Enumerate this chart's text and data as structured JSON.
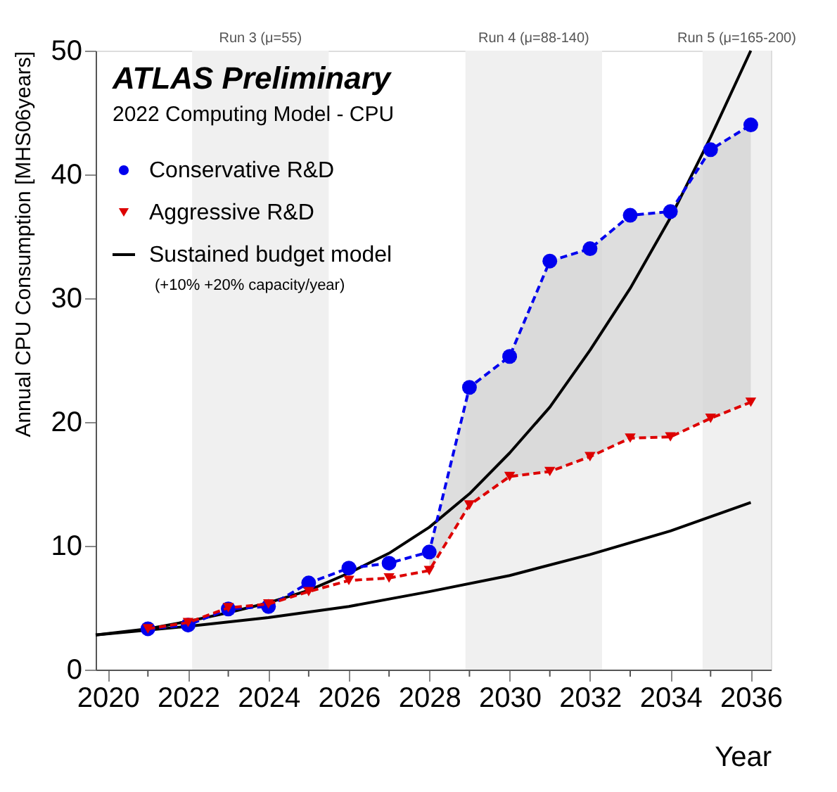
{
  "chart_data": {
    "type": "line",
    "title": "ATLAS Preliminary",
    "subtitle": "2022 Computing Model - CPU",
    "xlabel": "Year",
    "ylabel": "Annual CPU Consumption  [MHS06years]",
    "xlim": [
      2019.7,
      2036.5
    ],
    "ylim": [
      0,
      50
    ],
    "xticks": [
      2020,
      {
        "value": 2021,
        "label": null
      },
      2022,
      {
        "value": 2023,
        "label": null
      },
      2024,
      {
        "value": 2025,
        "label": null
      },
      2026,
      {
        "value": 2027,
        "label": null
      },
      2028,
      {
        "value": 2029,
        "label": null
      },
      2030,
      {
        "value": 2031,
        "label": null
      },
      2032,
      {
        "value": 2033,
        "label": null
      },
      2034,
      {
        "value": 2035,
        "label": null
      },
      2036
    ],
    "yticks": [
      0,
      10,
      20,
      30,
      40,
      50
    ],
    "grid": false,
    "legend": "top left",
    "series": [
      {
        "name": "Sustained budget model",
        "color": "#000000",
        "marker": "none",
        "line_style": "solid",
        "x": [
          2019.7,
          2021,
          2022,
          2023,
          2024,
          2025,
          2026,
          2027,
          2028,
          2029,
          2030,
          2031,
          2032,
          2033,
          2034,
          2035,
          2036
        ],
        "values": [
          2.8,
          3.3,
          3.9,
          4.6,
          5.4,
          6.4,
          7.8,
          9.4,
          11.5,
          14.2,
          17.5,
          21.2,
          25.8,
          30.8,
          36.5,
          43.0,
          50.0
        ]
      },
      {
        "color": "#000000",
        "marker": "none",
        "line_style": "solid",
        "x": [
          2019.7,
          2022,
          2024,
          2026,
          2028,
          2030,
          2032,
          2034,
          2036
        ],
        "values": [
          2.8,
          3.5,
          4.2,
          5.1,
          6.3,
          7.6,
          9.3,
          11.2,
          13.5
        ]
      },
      {
        "name": "Conservative R&D",
        "color": "#0000ee",
        "marker": "circle",
        "line_style": "dashed",
        "x": [
          2021,
          2022,
          2023,
          2024,
          2025,
          2026,
          2027,
          2028,
          2029,
          2030,
          2031,
          2032,
          2033,
          2034,
          2035,
          2036
        ],
        "values": [
          3.3,
          3.6,
          4.9,
          5.1,
          7.0,
          8.2,
          8.6,
          9.5,
          22.8,
          25.3,
          33.0,
          34.0,
          36.7,
          37.0,
          42.0,
          44.0
        ]
      },
      {
        "name": "Aggressive R&D",
        "color": "#dd0000",
        "marker": "triangle",
        "line_style": "dashed",
        "x": [
          2021,
          2022,
          2023,
          2024,
          2025,
          2026,
          2027,
          2028,
          2029,
          2030,
          2031,
          2032,
          2033,
          2034,
          2035,
          2036
        ],
        "values": [
          3.3,
          3.8,
          5.0,
          5.3,
          6.3,
          7.2,
          7.4,
          8.0,
          13.3,
          15.6,
          16.0,
          17.2,
          18.7,
          18.8,
          20.3,
          21.6
        ],
        "lower": [
          null,
          null,
          null,
          null,
          null,
          null,
          null,
          8.0,
          13.3,
          15.6,
          16.0,
          17.2,
          18.7,
          18.8,
          20.3,
          21.6
        ],
        "upper": [
          null,
          null,
          null,
          null,
          null,
          null,
          null,
          9.5,
          22.8,
          25.3,
          33.0,
          34.0,
          36.7,
          37.0,
          42.0,
          44.0
        ]
      }
    ],
    "bands": [
      {
        "axis": "x",
        "from": 2022.1,
        "to": 2025.5,
        "label": "Run 3 (μ=55)",
        "color": "#f0f0f0"
      },
      {
        "axis": "x",
        "from": 2028.9,
        "to": 2032.3,
        "label": "Run 4 (μ=88-140)",
        "color": "#f0f0f0"
      },
      {
        "axis": "x",
        "from": 2034.8,
        "to": 2036.5,
        "label": "Run 5 (μ=165-200)",
        "color": "#f0f0f0"
      }
    ],
    "annotations": [
      "(+10% +20% capacity/year)"
    ]
  }
}
